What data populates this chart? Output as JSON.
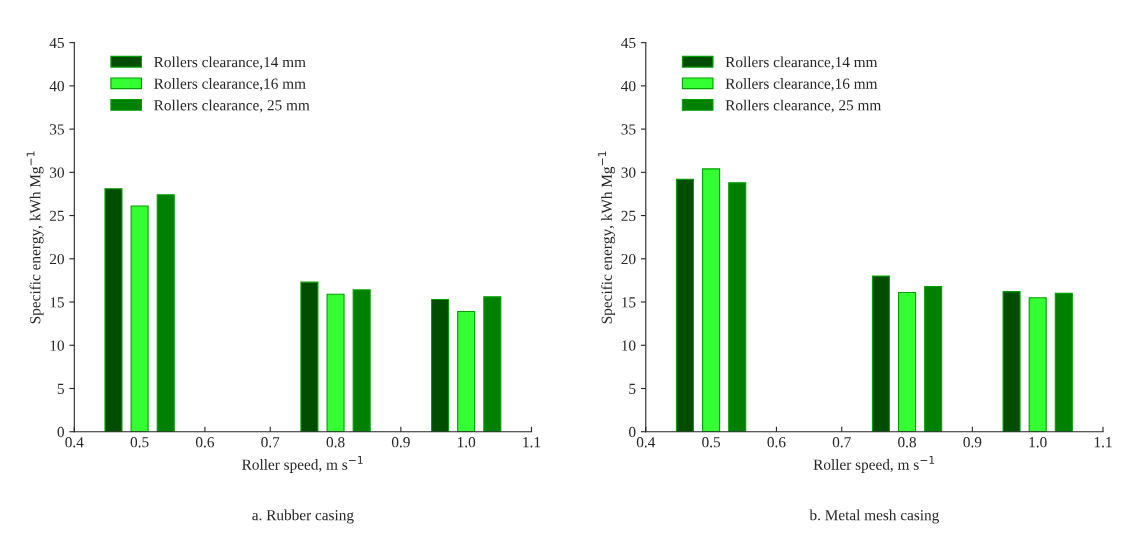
{
  "chart_data": [
    {
      "type": "bar",
      "xlabel": "Roller speed, m s$^{−1}$",
      "ylabel": "Specific energy, kWh Mg$^{−1}$",
      "xlim": [
        0.4,
        1.1
      ],
      "xticks": [
        {
          "value": 0.4,
          "label": "0.4"
        },
        {
          "value": 0.5,
          "label": "0.5"
        },
        {
          "value": 0.6,
          "label": "0.6"
        },
        {
          "value": 0.7,
          "label": "0.7"
        },
        {
          "value": 0.8,
          "label": "0.8"
        },
        {
          "value": 0.9,
          "label": "0.9"
        },
        {
          "value": 1.0,
          "label": "1.0"
        },
        {
          "value": 1.1,
          "label": "1.1"
        }
      ],
      "ylim": [
        0,
        45
      ],
      "yticks": [
        0,
        5,
        10,
        15,
        20,
        25,
        30,
        35,
        40,
        45
      ],
      "legend": "top left",
      "annotations": [
        "a. Rubber casing"
      ],
      "series": [
        {
          "name": "Rollers clearance,14 mm",
          "color": "#004d00",
          "x": [
            0.46,
            0.76,
            0.96
          ],
          "values": [
            28.1,
            17.3,
            15.3
          ]
        },
        {
          "name": "Rollers clearance,16 mm",
          "color": "#33ff33",
          "x": [
            0.5,
            0.8,
            1.0
          ],
          "values": [
            26.1,
            15.9,
            13.9
          ]
        },
        {
          "name": "Rollers clearance, 25 mm",
          "color": "#008000",
          "x": [
            0.54,
            0.84,
            1.04
          ],
          "values": [
            27.4,
            16.4,
            15.6
          ]
        }
      ]
    },
    {
      "type": "bar",
      "xlabel": "Roller speed, m s$^{−1}$",
      "ylabel": "Specific energy, kWh Mg$^{−1}$",
      "xlim": [
        0.4,
        1.1
      ],
      "xticks": [
        {
          "value": 0.4,
          "label": "0.4"
        },
        {
          "value": 0.5,
          "label": "0.5"
        },
        {
          "value": 0.6,
          "label": "0.6"
        },
        {
          "value": 0.7,
          "label": "0.7"
        },
        {
          "value": 0.8,
          "label": "0.8"
        },
        {
          "value": 0.9,
          "label": "0.9"
        },
        {
          "value": 1.0,
          "label": "1.0"
        },
        {
          "value": 1.1,
          "label": "1.1"
        }
      ],
      "ylim": [
        0,
        45
      ],
      "yticks": [
        0,
        5,
        10,
        15,
        20,
        25,
        30,
        35,
        40,
        45
      ],
      "legend": "top left",
      "annotations": [
        "b. Metal mesh casing"
      ],
      "series": [
        {
          "name": "Rollers clearance,14 mm",
          "color": "#004d00",
          "x": [
            0.46,
            0.76,
            0.96
          ],
          "values": [
            29.2,
            18.0,
            16.2
          ]
        },
        {
          "name": "Rollers clearance,16 mm",
          "color": "#33ff33",
          "x": [
            0.5,
            0.8,
            1.0
          ],
          "values": [
            30.4,
            16.1,
            15.5
          ]
        },
        {
          "name": "Rollers clearance, 25 mm",
          "color": "#008000",
          "x": [
            0.54,
            0.84,
            1.04
          ],
          "values": [
            28.8,
            16.8,
            16.0
          ]
        }
      ]
    }
  ]
}
